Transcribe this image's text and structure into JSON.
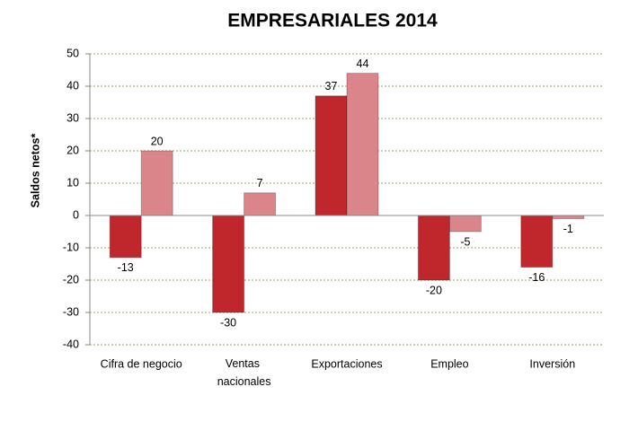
{
  "chart_data": {
    "type": "bar",
    "title": "EMPRESARIALES 2014",
    "y_label": "Saldos netos*",
    "categories": [
      "Cifra de negocio",
      "Ventas nacionales",
      "Exportaciones",
      "Empleo",
      "Inversión"
    ],
    "series": [
      {
        "color": "#c0272d",
        "values": [
          -13,
          -30,
          37,
          -20,
          -16
        ]
      },
      {
        "color": "#d98589",
        "values": [
          20,
          7,
          44,
          -5,
          -1
        ]
      }
    ],
    "ylim": [
      -40,
      50
    ],
    "yticks": [
      -40,
      -30,
      -20,
      -10,
      0,
      10,
      20,
      30,
      40,
      50
    ],
    "grid": true
  }
}
